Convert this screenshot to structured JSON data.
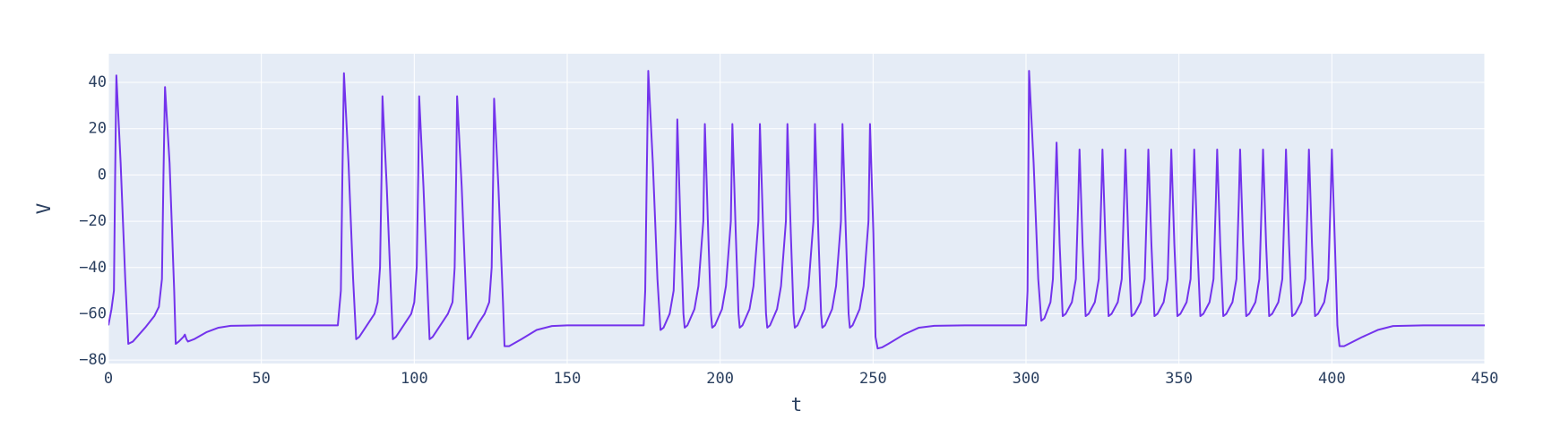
{
  "chart_data": {
    "type": "line",
    "x_label": "t",
    "y_label": "V",
    "color": "#7333ec",
    "grid": true,
    "xlim": [
      0,
      450
    ],
    "ylim": [
      -81.5,
      52.4
    ],
    "xticks": [
      0,
      50,
      100,
      150,
      200,
      250,
      300,
      350,
      400,
      450
    ],
    "yticks": [
      {
        "value": -80,
        "label": "−80"
      },
      {
        "value": -60,
        "label": "−60"
      },
      {
        "value": -40,
        "label": "−40"
      },
      {
        "value": -20,
        "label": "−20"
      },
      0,
      20,
      40
    ],
    "x": [
      0,
      1,
      1.8,
      2.2,
      2.6,
      4,
      5.5,
      6.5,
      8,
      12,
      15,
      16.5,
      17.5,
      18,
      18.5,
      20,
      21.5,
      22,
      23,
      24.5,
      25,
      25.5,
      26,
      28,
      32,
      36,
      40,
      50,
      75,
      76,
      76.5,
      77,
      78.5,
      80,
      81,
      82,
      85,
      87,
      88,
      88.8,
      89.3,
      89.6,
      91,
      92.5,
      93,
      94,
      97,
      99,
      100,
      100.8,
      101.3,
      101.6,
      103,
      104.5,
      105,
      106,
      109,
      111,
      112.5,
      113.2,
      113.7,
      114,
      115.5,
      117,
      117.5,
      118.5,
      121,
      123,
      124.5,
      125.3,
      125.8,
      126.1,
      127.5,
      129,
      129.5,
      131,
      135,
      140,
      145,
      150,
      175,
      175.5,
      176,
      176.5,
      178,
      179.5,
      180.5,
      181.5,
      183.5,
      184.8,
      185.5,
      186,
      187.1,
      188,
      188.4,
      189.3,
      191.6,
      192.9,
      194.5,
      195,
      196.1,
      197,
      197.4,
      198.3,
      200.6,
      201.9,
      203.5,
      204,
      205.1,
      206,
      206.4,
      207.3,
      209.6,
      210.9,
      212.5,
      213,
      214.1,
      215,
      215.4,
      216.3,
      218.6,
      219.9,
      221.5,
      222,
      223.1,
      224,
      224.4,
      225.3,
      227.6,
      228.9,
      230.5,
      231,
      232.1,
      233,
      233.4,
      234.3,
      236.6,
      237.9,
      239.5,
      240,
      241.1,
      242,
      242.4,
      243.3,
      245.6,
      246.9,
      248.5,
      249,
      250.1,
      250.8,
      251.5,
      253,
      255,
      260,
      265,
      270,
      280,
      300,
      300.5,
      301,
      302.5,
      304,
      305,
      306,
      308,
      308.8,
      309.5,
      310,
      311,
      311.8,
      312,
      313,
      315,
      316.3,
      317.1,
      317.5,
      318.5,
      319.3,
      319.5,
      320.5,
      322.5,
      323.8,
      324.6,
      325,
      326,
      326.8,
      327,
      328,
      330,
      331.3,
      332.1,
      332.5,
      333.5,
      334.3,
      334.5,
      335.5,
      337.5,
      338.8,
      339.6,
      340,
      341,
      341.8,
      342,
      343,
      345,
      346.3,
      347.1,
      347.5,
      348.5,
      349.3,
      349.5,
      350.5,
      352.5,
      353.8,
      354.6,
      355,
      356,
      356.8,
      357,
      358,
      360,
      361.3,
      362.1,
      362.5,
      363.5,
      364.3,
      364.5,
      365.5,
      367.5,
      368.8,
      369.6,
      370,
      371,
      371.8,
      372,
      373,
      375,
      376.3,
      377.1,
      377.5,
      378.5,
      379.3,
      379.5,
      380.5,
      382.5,
      383.8,
      384.6,
      385,
      386,
      386.8,
      387,
      388,
      390,
      391.3,
      392.1,
      392.5,
      393.5,
      394.3,
      394.5,
      395.5,
      397.5,
      398.8,
      399.6,
      400,
      401,
      401.8,
      402.5,
      404,
      410,
      415,
      420,
      430,
      450
    ],
    "values": [
      -65,
      -58,
      -50,
      0,
      43,
      5,
      -45,
      -73,
      -72,
      -66,
      -61,
      -57,
      -45,
      0,
      38,
      5,
      -50,
      -73,
      -72,
      -70,
      -69,
      -71,
      -72,
      -71,
      -68,
      -66,
      -65.2,
      -65,
      -65,
      -50,
      0,
      44,
      5,
      -45,
      -71,
      -70,
      -64,
      -60,
      -55,
      -40,
      0,
      34,
      -5,
      -55,
      -71,
      -70,
      -64,
      -60,
      -55,
      -40,
      0,
      34,
      -5,
      -55,
      -71,
      -70,
      -64,
      -60,
      -55,
      -40,
      0,
      34,
      -5,
      -55,
      -71,
      -70,
      -64,
      -60,
      -55,
      -40,
      0,
      33,
      -5,
      -55,
      -74,
      -74,
      -71,
      -67,
      -65.3,
      -65,
      -65,
      -50,
      0,
      45,
      5,
      -45,
      -67,
      -66,
      -60,
      -50,
      -20,
      24,
      -25,
      -60,
      -66,
      -65,
      -58,
      -48,
      -20,
      22,
      -25,
      -60,
      -66,
      -65,
      -58,
      -48,
      -20,
      22,
      -25,
      -60,
      -66,
      -65,
      -58,
      -48,
      -20,
      22,
      -25,
      -60,
      -66,
      -65,
      -58,
      -48,
      -20,
      22,
      -25,
      -60,
      -66,
      -65,
      -58,
      -48,
      -20,
      22,
      -25,
      -60,
      -66,
      -65,
      -58,
      -48,
      -20,
      22,
      -25,
      -60,
      -66,
      -65,
      -58,
      -48,
      -20,
      22,
      -25,
      -70,
      -75,
      -74.5,
      -73,
      -69,
      -66,
      -65.2,
      -65,
      -65,
      -50,
      45,
      5,
      -45,
      -63,
      -62,
      -55,
      -45,
      -10,
      14,
      -30,
      -55,
      -61,
      -60,
      -55,
      -45,
      -10,
      11,
      -30,
      -55,
      -61,
      -60,
      -55,
      -45,
      -10,
      11,
      -30,
      -55,
      -61,
      -60,
      -55,
      -45,
      -10,
      11,
      -30,
      -55,
      -61,
      -60,
      -55,
      -45,
      -10,
      11,
      -30,
      -55,
      -61,
      -60,
      -55,
      -45,
      -10,
      11,
      -30,
      -55,
      -61,
      -60,
      -55,
      -45,
      -10,
      11,
      -30,
      -55,
      -61,
      -60,
      -55,
      -45,
      -10,
      11,
      -30,
      -55,
      -61,
      -60,
      -55,
      -45,
      -10,
      11,
      -30,
      -55,
      -61,
      -60,
      -55,
      -45,
      -10,
      11,
      -30,
      -55,
      -61,
      -60,
      -55,
      -45,
      -10,
      11,
      -30,
      -55,
      -61,
      -60,
      -55,
      -45,
      -10,
      11,
      -30,
      -55,
      -61,
      -60,
      -55,
      -45,
      -10,
      11,
      -30,
      -65,
      -74,
      -74,
      -70,
      -67,
      -65.3,
      -65,
      -65
    ]
  }
}
